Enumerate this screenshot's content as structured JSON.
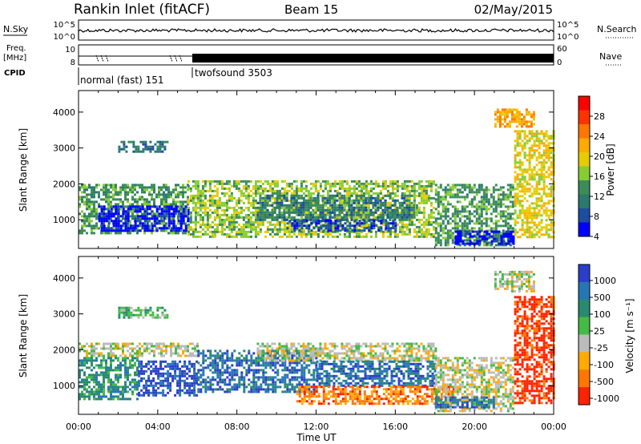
{
  "header": {
    "station": "Rankin Inlet (fitACF)",
    "beam": "Beam 15",
    "date": "02/May/2015"
  },
  "top_panels": {
    "nsky_label": "N.Sky",
    "nsky_ticks": [
      "10^5",
      "10^0"
    ],
    "nsearch_label": "N.Search",
    "nsearch_ticks": [
      "10^5",
      "10^0"
    ],
    "freq_label_line1": "Freq.",
    "freq_label_line2": "[MHz]",
    "freq_ticks": [
      "10",
      "8"
    ],
    "nave_label": "Nave",
    "nave_ticks": [
      "60",
      "0"
    ],
    "cpid_label": "CPID",
    "cpid_modes": [
      {
        "name": "normal (fast) 151",
        "start_hour": 0.0
      },
      {
        "name": "twofsound 3503",
        "start_hour": 6.0
      }
    ]
  },
  "power_colorbar": {
    "label": "Power [dB]",
    "ticks": [
      "28",
      "24",
      "20",
      "16",
      "12",
      "8",
      "4"
    ],
    "colors": [
      "#ff0000",
      "#ff3300",
      "#ff7700",
      "#ffaa00",
      "#e6cc00",
      "#88cc33",
      "#3c8c5a",
      "#2a7a6e",
      "#1c4da0",
      "#0000ff"
    ]
  },
  "velocity_colorbar": {
    "label": "Velocity [m s⁻¹]",
    "ticks": [
      "1000",
      "500",
      "100",
      "25",
      "-25",
      "-100",
      "-500",
      "-1000"
    ],
    "colors": [
      "#2b3ec8",
      "#2676b5",
      "#2a8a6e",
      "#44bb44",
      "#bbbbbb",
      "#ffaa00",
      "#ff7700",
      "#ff2200"
    ]
  },
  "chart_data": [
    {
      "type": "heatmap",
      "name": "power",
      "ylabel": "Slant Range [km]",
      "xlim_hours": [
        0,
        24
      ],
      "ylim": [
        200,
        4600
      ],
      "yticks": [
        1000,
        2000,
        3000,
        4000
      ],
      "xticks": [
        "00:00",
        "04:00",
        "08:00",
        "12:00",
        "16:00",
        "20:00",
        "00:00"
      ],
      "bands": [
        {
          "t0": 0.0,
          "t1": 5.5,
          "r0": 600,
          "r1": 2000,
          "level": 6
        },
        {
          "t0": 1.0,
          "t1": 5.5,
          "r0": 700,
          "r1": 1400,
          "level": 9
        },
        {
          "t0": 2.0,
          "t1": 4.5,
          "r0": 2900,
          "r1": 3200,
          "level": 7
        },
        {
          "t0": 5.5,
          "t1": 18.0,
          "r0": 500,
          "r1": 2100,
          "level": 5
        },
        {
          "t0": 9.0,
          "t1": 17.0,
          "r0": 1000,
          "r1": 1700,
          "level": 7
        },
        {
          "t0": 10.5,
          "t1": 16.0,
          "r0": 700,
          "r1": 1000,
          "level": 8
        },
        {
          "t0": 18.0,
          "t1": 22.0,
          "r0": 300,
          "r1": 2000,
          "level": 6
        },
        {
          "t0": 19.0,
          "t1": 22.0,
          "r0": 300,
          "r1": 700,
          "level": 9
        },
        {
          "t0": 21.0,
          "t1": 23.0,
          "r0": 3600,
          "r1": 4100,
          "level": 3
        },
        {
          "t0": 22.0,
          "t1": 24.0,
          "r0": 500,
          "r1": 3500,
          "level": 4
        }
      ]
    },
    {
      "type": "heatmap",
      "name": "velocity",
      "xlabel": "Time UT",
      "ylabel": "Slant Range [km]",
      "xlim_hours": [
        0,
        24
      ],
      "ylim": [
        200,
        4600
      ],
      "yticks": [
        1000,
        2000,
        3000,
        4000
      ],
      "xticks": [
        "00:00",
        "04:00",
        "08:00",
        "12:00",
        "16:00",
        "20:00",
        "00:00"
      ],
      "bands": [
        {
          "t0": 0.0,
          "t1": 6.0,
          "r0": 1800,
          "r1": 2200,
          "level": 4
        },
        {
          "t0": 0.0,
          "t1": 3.0,
          "r0": 600,
          "r1": 1800,
          "level": 2
        },
        {
          "t0": 3.0,
          "t1": 6.0,
          "r0": 700,
          "r1": 1700,
          "level": 0
        },
        {
          "t0": 2.0,
          "t1": 4.5,
          "r0": 2900,
          "r1": 3200,
          "level": 3
        },
        {
          "t0": 6.0,
          "t1": 12.0,
          "r0": 800,
          "r1": 2000,
          "level": 1
        },
        {
          "t0": 9.0,
          "t1": 18.0,
          "r0": 1700,
          "r1": 2200,
          "level": 4
        },
        {
          "t0": 12.0,
          "t1": 18.0,
          "r0": 1000,
          "r1": 1700,
          "level": 1
        },
        {
          "t0": 11.0,
          "t1": 19.0,
          "r0": 500,
          "r1": 1000,
          "level": 6
        },
        {
          "t0": 18.0,
          "t1": 22.0,
          "r0": 300,
          "r1": 1800,
          "level": 4
        },
        {
          "t0": 18.0,
          "t1": 21.0,
          "r0": 400,
          "r1": 700,
          "level": 1
        },
        {
          "t0": 21.0,
          "t1": 23.0,
          "r0": 3600,
          "r1": 4200,
          "level": 4
        },
        {
          "t0": 22.0,
          "t1": 24.0,
          "r0": 500,
          "r1": 3500,
          "level": 7
        }
      ]
    }
  ]
}
